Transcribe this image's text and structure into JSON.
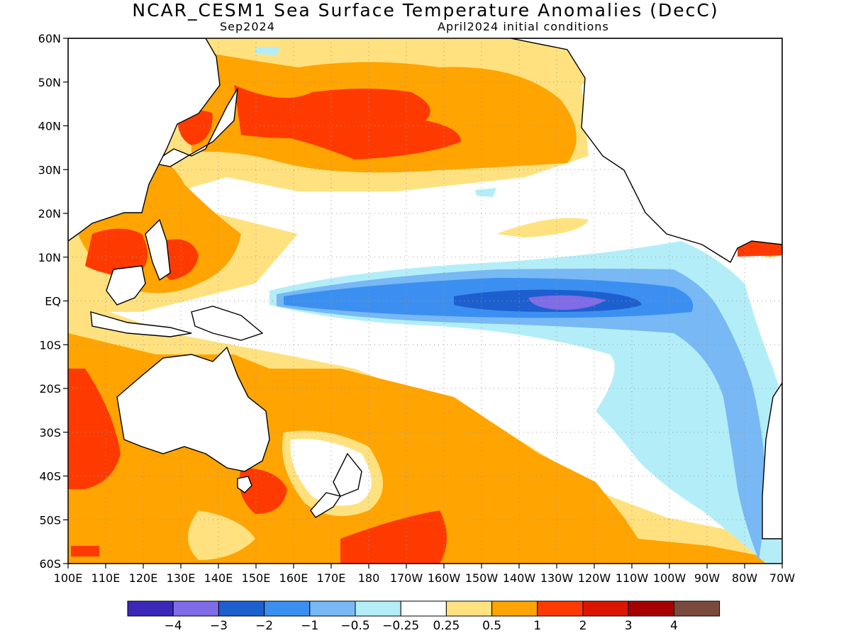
{
  "title": "NCAR_CESM1 Sea Surface Temperature Anomalies (DecC)",
  "forecast_month": "Sep2024",
  "init_conditions": "April2024 initial conditions",
  "lat_labels": [
    "60N",
    "50N",
    "40N",
    "30N",
    "20N",
    "10N",
    "EQ",
    "10S",
    "20S",
    "30S",
    "40S",
    "50S",
    "60S"
  ],
  "lon_labels": [
    "100E",
    "110E",
    "120E",
    "130E",
    "140E",
    "150E",
    "160E",
    "170E",
    "180",
    "170W",
    "160W",
    "150W",
    "140W",
    "130W",
    "120W",
    "110W",
    "100W",
    "90W",
    "80W",
    "70W"
  ],
  "colorbar": {
    "colors": [
      "#3b27b8",
      "#7f6ce6",
      "#1d5fcf",
      "#3b8ff0",
      "#77b8f5",
      "#b3eef8",
      "#ffffff",
      "#ffe27f",
      "#ffa400",
      "#ff3a00",
      "#dc1500",
      "#a70000",
      "#7a4b3d"
    ],
    "labels": [
      "−4",
      "−3",
      "−2",
      "−1",
      "−0.5",
      "−0.25",
      "0.25",
      "0.5",
      "1",
      "2",
      "3",
      "4"
    ]
  }
}
